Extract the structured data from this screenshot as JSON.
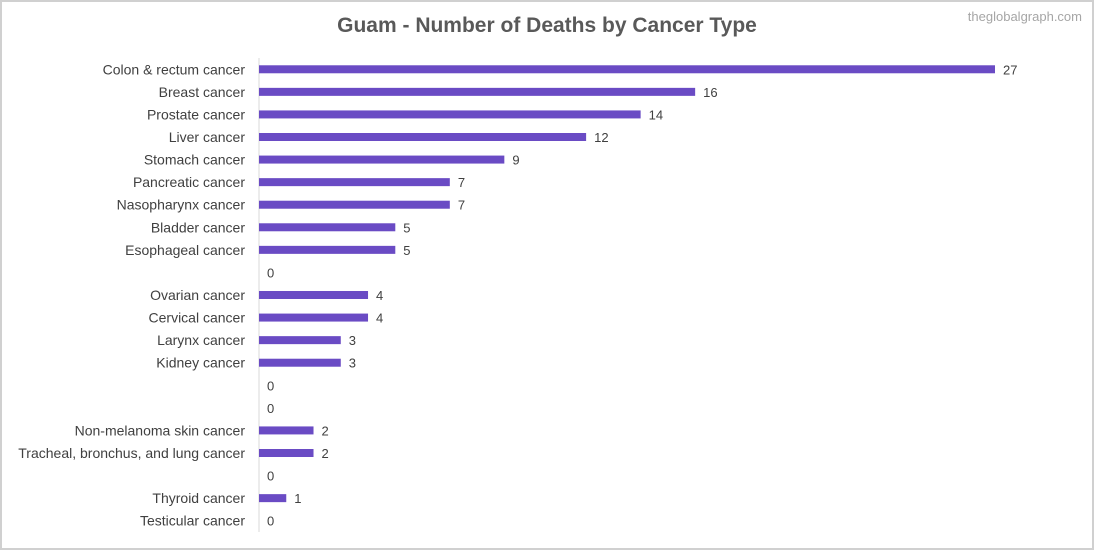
{
  "watermark": "theglobalgraph.com",
  "colors": {
    "bar": "#6a4bc4",
    "axis": "#d9d9d9",
    "text": "#404040",
    "title": "#595959"
  },
  "chart_data": {
    "type": "bar",
    "orientation": "horizontal",
    "title": "Guam - Number of Deaths by Cancer Type",
    "xlabel": "",
    "ylabel": "",
    "xlim": [
      0,
      27
    ],
    "grid": false,
    "legend": "none",
    "categories": [
      "Colon & rectum cancer",
      "Breast cancer",
      "Prostate cancer",
      "Liver cancer",
      "Stomach cancer",
      "Pancreatic cancer",
      "Nasopharynx cancer",
      "Bladder cancer",
      "Esophageal cancer",
      "",
      "Ovarian cancer",
      "Cervical cancer",
      "Larynx cancer",
      "Kidney cancer",
      "",
      "",
      "Non-melanoma skin cancer",
      "Tracheal, bronchus, and lung cancer",
      "",
      "Thyroid cancer",
      "Testicular cancer"
    ],
    "values": [
      27,
      16,
      14,
      12,
      9,
      7,
      7,
      5,
      5,
      0,
      4,
      4,
      3,
      3,
      0,
      0,
      2,
      2,
      0,
      1,
      0
    ]
  }
}
